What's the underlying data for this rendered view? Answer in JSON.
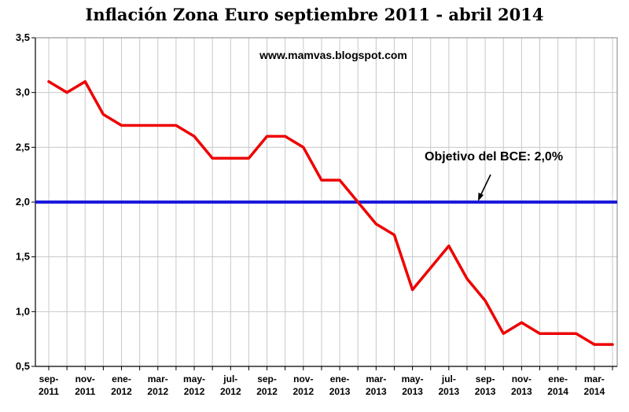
{
  "chart_data": {
    "type": "line",
    "title": "Inflación Zona Euro septiembre 2011 - abril 2014",
    "watermark": "www.mamvas.blogspot.com",
    "xlabel": "",
    "ylabel": "",
    "ylim": [
      0.5,
      3.5
    ],
    "yticks": [
      "0,5",
      "1,0",
      "1,5",
      "2,0",
      "2,5",
      "3,0",
      "3,5"
    ],
    "ytick_values": [
      0.5,
      1.0,
      1.5,
      2.0,
      2.5,
      3.0,
      3.5
    ],
    "grid": true,
    "x_tick_labels": [
      {
        "month": "sep-",
        "year": "2011"
      },
      {
        "month": "nov-",
        "year": "2011"
      },
      {
        "month": "ene-",
        "year": "2012"
      },
      {
        "month": "mar-",
        "year": "2012"
      },
      {
        "month": "may-",
        "year": "2012"
      },
      {
        "month": "jul-",
        "year": "2012"
      },
      {
        "month": "sep-",
        "year": "2012"
      },
      {
        "month": "nov-",
        "year": "2012"
      },
      {
        "month": "ene-",
        "year": "2013"
      },
      {
        "month": "mar-",
        "year": "2013"
      },
      {
        "month": "may-",
        "year": "2013"
      },
      {
        "month": "jul-",
        "year": "2013"
      },
      {
        "month": "sep-",
        "year": "2013"
      },
      {
        "month": "nov-",
        "year": "2013"
      },
      {
        "month": "ene-",
        "year": "2014"
      },
      {
        "month": "mar-",
        "year": "2014"
      }
    ],
    "series": [
      {
        "name": "Inflación Zona Euro",
        "color": "#ee0000",
        "values": [
          3.1,
          3.0,
          3.1,
          2.8,
          2.7,
          2.7,
          2.7,
          2.7,
          2.6,
          2.4,
          2.4,
          2.4,
          2.6,
          2.6,
          2.5,
          2.2,
          2.2,
          2.0,
          1.8,
          1.7,
          1.2,
          1.4,
          1.6,
          1.3,
          1.1,
          0.8,
          0.9,
          0.8,
          0.8,
          0.8,
          0.7,
          0.7
        ]
      }
    ],
    "reference_line": {
      "value": 2.0,
      "color": "#1a1adc",
      "label": "Objetivo del BCE: 2,0%"
    }
  }
}
